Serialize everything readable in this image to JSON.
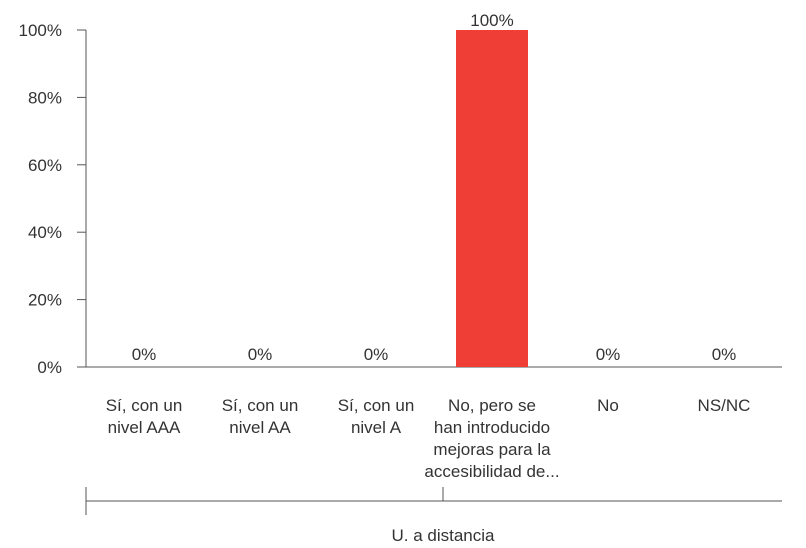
{
  "chart_data": {
    "type": "bar",
    "categories": [
      [
        "Sí, con un",
        "nivel AAA"
      ],
      [
        "Sí, con un",
        "nivel AA"
      ],
      [
        "Sí, con un",
        "nivel A"
      ],
      [
        "No, pero se",
        "han introducido",
        "mejoras para la",
        "accesibilidad de..."
      ],
      [
        "No"
      ],
      [
        "NS/NC"
      ]
    ],
    "values": [
      0,
      0,
      0,
      100,
      0,
      0
    ],
    "data_labels": [
      "0%",
      "0%",
      "0%",
      "100%",
      "0%",
      "0%"
    ],
    "y_ticks": [
      "0%",
      "20%",
      "40%",
      "60%",
      "80%",
      "100%"
    ],
    "ylim": [
      0,
      100
    ],
    "group_label": "U. a distancia",
    "colors": {
      "bar": "#EF3E36",
      "axis": "#555555",
      "text": "#333333"
    },
    "grid": false,
    "title": "",
    "xlabel": "",
    "ylabel": ""
  }
}
